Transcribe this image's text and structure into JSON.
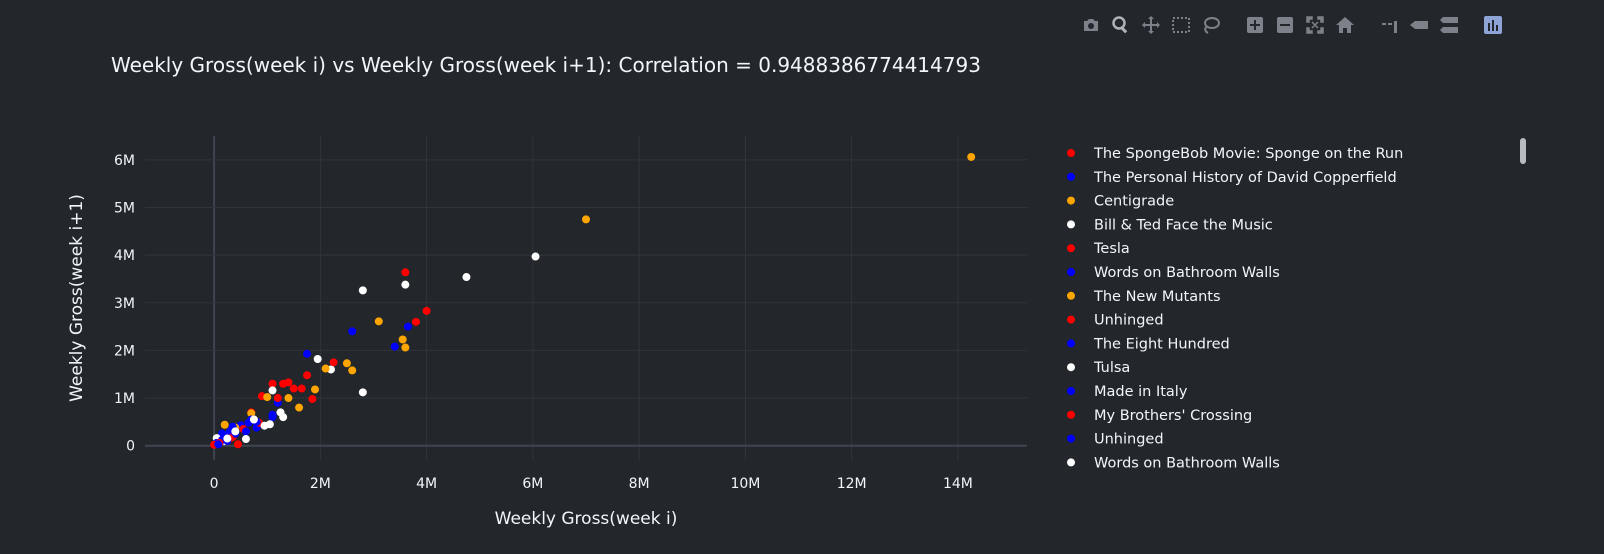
{
  "modebar": {
    "tools": [
      "camera-icon",
      "zoom-icon",
      "pan-icon",
      "box-select-icon",
      "lasso-select-icon",
      "zoom-in-icon",
      "zoom-out-icon",
      "autoscale-icon",
      "reset-axes-icon",
      "spike-lines-icon",
      "hover-closest-icon",
      "hover-compare-icon",
      "plotly-logo-icon"
    ]
  },
  "colors": {
    "background": "#23262b",
    "grid": "#30353d",
    "zeroline": "#3e4550",
    "text": "#f2f5fa"
  },
  "chart_data": {
    "type": "scatter",
    "title": "Weekly Gross(week i) vs Weekly Gross(week i+1): Correlation = 0.9488386774414793",
    "xlabel": "Weekly Gross(week i)",
    "ylabel": "Weekly Gross(week i+1)",
    "xlim": [
      -1300000,
      15300000
    ],
    "ylim": [
      -300000,
      6500000
    ],
    "x_ticks": [
      0,
      2000000,
      4000000,
      6000000,
      8000000,
      10000000,
      12000000,
      14000000
    ],
    "x_tick_labels": [
      "0",
      "2M",
      "4M",
      "6M",
      "8M",
      "10M",
      "12M",
      "14M"
    ],
    "y_ticks": [
      0,
      1000000,
      2000000,
      3000000,
      4000000,
      5000000,
      6000000
    ],
    "y_tick_labels": [
      "0",
      "1M",
      "2M",
      "3M",
      "4M",
      "5M",
      "6M"
    ],
    "grid": true,
    "legend_position": "right",
    "series": [
      {
        "name": "The SpongeBob Movie: Sponge on the Run",
        "color": "#ff0000",
        "x": [
          3600000,
          4000000,
          3800000,
          1500000,
          1300000,
          900000
        ],
        "y": [
          3640000,
          2830000,
          2600000,
          1200000,
          1300000,
          1040000
        ]
      },
      {
        "name": "The Personal History of David Copperfield",
        "color": "#0000ff",
        "x": [
          2600000,
          1750000,
          3400000,
          3650000,
          1100000,
          500000
        ],
        "y": [
          2400000,
          1930000,
          2080000,
          2500000,
          650000,
          430000
        ]
      },
      {
        "name": "Centigrade",
        "color": "#ffa500",
        "x": [
          14250000,
          7000000,
          3100000,
          3550000,
          3600000,
          2500000,
          2600000
        ],
        "y": [
          6060000,
          4750000,
          2610000,
          2230000,
          2060000,
          1730000,
          1580000
        ]
      },
      {
        "name": "Bill & Ted Face the Music",
        "color": "#ffffff",
        "x": [
          6050000,
          4750000,
          3600000,
          2800000,
          1950000,
          2800000,
          2200000
        ],
        "y": [
          3970000,
          3540000,
          3380000,
          3260000,
          1820000,
          1120000,
          1600000
        ]
      },
      {
        "name": "Tesla",
        "color": "#ff0000",
        "x": [
          1650000,
          2250000,
          1750000,
          1850000,
          1100000,
          700000
        ],
        "y": [
          1200000,
          1750000,
          1480000,
          980000,
          1300000,
          700000
        ]
      },
      {
        "name": "Words on Bathroom Walls",
        "color": "#0000ff",
        "x": [
          1200000,
          800000,
          300000,
          150000,
          650000
        ],
        "y": [
          900000,
          380000,
          300000,
          260000,
          480000
        ]
      },
      {
        "name": "The New Mutants",
        "color": "#ffa500",
        "x": [
          2100000,
          1900000,
          1600000,
          1400000,
          1000000,
          700000,
          400000,
          200000
        ],
        "y": [
          1620000,
          1180000,
          800000,
          1000000,
          1020000,
          680000,
          380000,
          440000
        ]
      },
      {
        "name": "Unhinged",
        "color": "#ff0000",
        "x": [
          1400000,
          1200000,
          850000,
          550000,
          350000,
          100000
        ],
        "y": [
          1330000,
          1000000,
          480000,
          350000,
          180000,
          80000
        ]
      },
      {
        "name": "The Eight Hundred",
        "color": "#0000ff",
        "x": [
          1100000,
          800000,
          600000,
          400000,
          200000
        ],
        "y": [
          600000,
          500000,
          300000,
          250000,
          150000
        ]
      },
      {
        "name": "Tulsa",
        "color": "#ffffff",
        "x": [
          1100000,
          1300000,
          950000,
          600000,
          200000,
          50000
        ],
        "y": [
          1160000,
          600000,
          420000,
          140000,
          100000,
          160000
        ]
      },
      {
        "name": "Made in Italy",
        "color": "#0000ff",
        "x": [
          400000,
          250000,
          150000,
          50000
        ],
        "y": [
          300000,
          200000,
          120000,
          60000
        ]
      },
      {
        "name": "My Brothers' Crossing",
        "color": "#ff0000",
        "x": [
          450000,
          300000,
          100000,
          0
        ],
        "y": [
          30000,
          150000,
          60000,
          20000
        ]
      },
      {
        "name": "Unhinged",
        "color": "#0000ff",
        "x": [
          700000,
          350000,
          250000,
          80000
        ],
        "y": [
          550000,
          400000,
          100000,
          30000
        ]
      },
      {
        "name": "Words on Bathroom Walls",
        "color": "#ffffff",
        "x": [
          1250000,
          1050000,
          750000,
          400000,
          250000
        ],
        "y": [
          700000,
          450000,
          550000,
          300000,
          150000
        ]
      }
    ]
  }
}
